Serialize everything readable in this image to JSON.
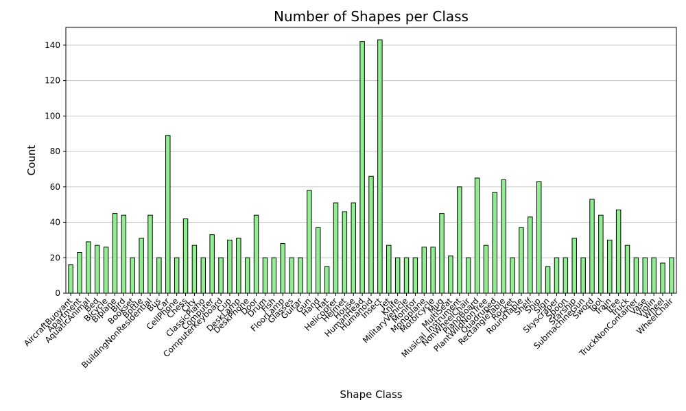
{
  "chart_data": {
    "type": "bar",
    "title": "Number of Shapes per Class",
    "xlabel": "Shape Class",
    "ylabel": "Count",
    "ylim": [
      0,
      150
    ],
    "yticks": [
      0,
      20,
      40,
      60,
      80,
      100,
      120,
      140
    ],
    "grid": "y",
    "legend": "none",
    "bar_color": "#90ee90",
    "edge_color": "#000000",
    "categories": [
      "AircraftBuoyant",
      "Apartment",
      "AquaticAnimal",
      "Bed",
      "Bicycle",
      "Biplane",
      "Bird",
      "Bookset",
      "Bottle",
      "BuildingNonResidential",
      "Bus",
      "Car",
      "CellPhone",
      "Chess",
      "City",
      "ClassicPiano",
      "Computer",
      "ComputerKeyboard",
      "Cup",
      "DeskLamp",
      "DeskPhone",
      "Door",
      "Drum",
      "Fish",
      "FloorLamp",
      "Glasses",
      "Guitar",
      "Gun",
      "Hand",
      "Hat",
      "Helicopter",
      "Helmet",
      "House",
      "HumanHead",
      "Humanoid",
      "Insect",
      "Jet",
      "Knife",
      "MilitaryVehicle",
      "Monitor",
      "Monoplane",
      "Motorcycle",
      "Mug",
      "MultiSeat",
      "Musical_Instrument",
      "NonWheelChair",
      "PianoBoard",
      "PlantWildNonTree",
      "Quadruped",
      "RectangleTable",
      "Rocket",
      "RoundTable",
      "Shelf",
      "Ship",
      "Sign",
      "Skyscraper",
      "Spoon",
      "Starship",
      "SubmachineGun",
      "Sword",
      "Tool",
      "Train",
      "Tree",
      "Truck",
      "TruckNonContainer",
      "Vase",
      "Violin",
      "Wheel",
      "WheelChair"
    ],
    "values": [
      16,
      23,
      29,
      27,
      26,
      45,
      44,
      20,
      31,
      44,
      20,
      89,
      20,
      42,
      27,
      20,
      33,
      20,
      30,
      31,
      20,
      44,
      20,
      20,
      28,
      20,
      20,
      58,
      37,
      15,
      51,
      46,
      51,
      142,
      66,
      143,
      27,
      20,
      20,
      20,
      26,
      26,
      45,
      21,
      60,
      20,
      65,
      27,
      57,
      64,
      20,
      37,
      43,
      63,
      15,
      20,
      20,
      31,
      20,
      53,
      44,
      30,
      47,
      27,
      20,
      20,
      20,
      17,
      20
    ]
  }
}
